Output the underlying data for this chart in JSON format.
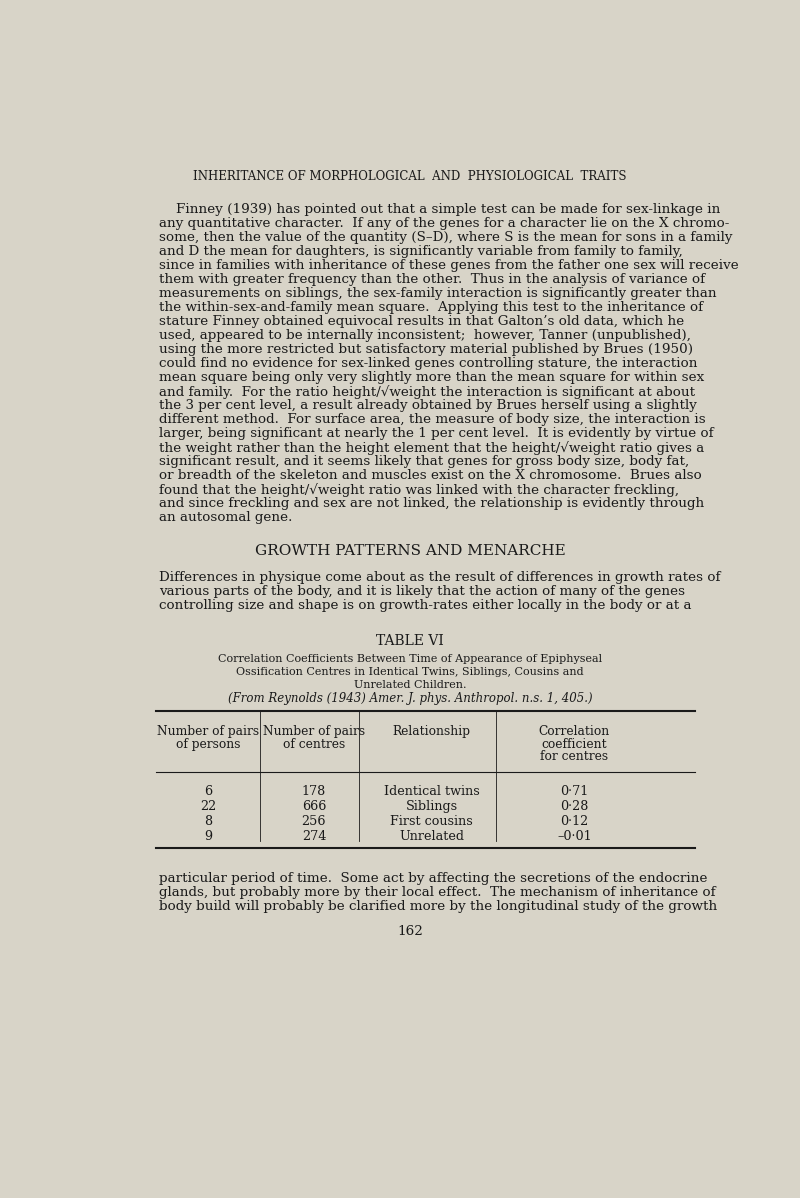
{
  "bg_color": "#d8d4c8",
  "text_color": "#1a1a1a",
  "page_title": "INHERITANCE OF MORPHOLOGICAL  AND  PHYSIOLOGICAL  TRAITS",
  "paragraph1_lines": [
    "Finney (1939) has pointed out that a simple test can be made for sex-linkage in",
    "any quantitative character.  If any of the genes for a character lie on the X chromo-",
    "some, then the value of the quantity (S–D), where S is the mean for sons in a family",
    "and D the mean for daughters, is significantly variable from family to family,",
    "since in families with inheritance of these genes from the father one sex will receive",
    "them with greater frequency than the other.  Thus in the analysis of variance of",
    "measurements on siblings, the sex-family interaction is significantly greater than",
    "the within-sex-and-family mean square.  Applying this test to the inheritance of",
    "stature Finney obtained equivocal results in that Galton’s old data, which he",
    "used, appeared to be internally inconsistent;  however, Tanner (unpublished),",
    "using the more restricted but satisfactory material published by Brues (1950)",
    "could find no evidence for sex-linked genes controlling stature, the interaction",
    "mean square being only very slightly more than the mean square for within sex",
    "and family.  For the ratio height/√weight the interaction is significant at about",
    "the 3 per cent level, a result already obtained by Brues herself using a slightly",
    "different method.  For surface area, the measure of body size, the interaction is",
    "larger, being significant at nearly the 1 per cent level.  It is evidently by virtue of",
    "the weight rather than the height element that the height/√weight ratio gives a",
    "significant result, and it seems likely that genes for gross body size, body fat,",
    "or breadth of the skeleton and muscles exist on the X chromosome.  Brues also",
    "found that the height/√weight ratio was linked with the character freckling,",
    "and since freckling and sex are not linked, the relationship is evidently through",
    "an autosomal gene."
  ],
  "section_title": "GROWTH PATTERNS AND MENARCHE",
  "paragraph2_lines": [
    "Differences in physique come about as the result of differences in growth rates of",
    "various parts of the body, and it is likely that the action of many of the genes",
    "controlling size and shape is on growth-rates either locally in the body or at a"
  ],
  "table_title": "TABLE VI",
  "table_caption_line1": "Correlation Coefficients Between Time of Appearance of Epiphyseal",
  "table_caption_line2": "Ossification Centres in Identical Twins, Siblings, Cousins and",
  "table_caption_line3": "Unrelated Children.",
  "table_caption_line4": "(From Reynolds (1943) Amer. J. phys. Anthropol. n.s. 1, 405.)",
  "col_headers": [
    "Number of pairs\nof persons",
    "Number of pairs\nof centres",
    "Relationship",
    "Correlation\ncoefficient\nfor centres"
  ],
  "table_data": [
    [
      "6",
      "178",
      "Identical twins",
      "0·71"
    ],
    [
      "22",
      "666",
      "Siblings",
      "0·28"
    ],
    [
      "8",
      "256",
      "First cousins",
      "0·12"
    ],
    [
      "9",
      "274",
      "Unrelated",
      "–0·01"
    ]
  ],
  "paragraph3_lines": [
    "particular period of time.  Some act by affecting the secretions of the endocrine",
    "glands, but probably more by their local effect.  The mechanism of inheritance of",
    "body build will probably be clarified more by the longitudinal study of the growth"
  ],
  "page_number": "162"
}
